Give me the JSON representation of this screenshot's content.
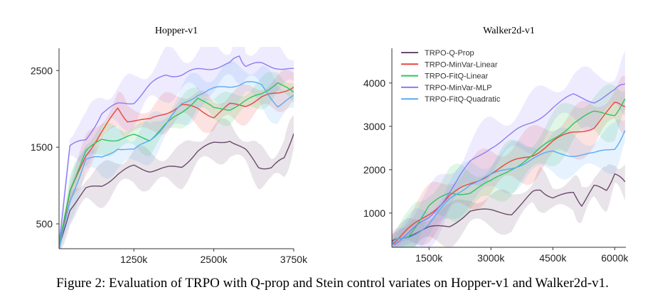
{
  "caption": "Figure 2: Evaluation of TRPO with Q-prop and Stein control variates on Hopper-v1 and Walker2d-v1.",
  "chart_data": [
    {
      "type": "line",
      "title": "Hopper-v1",
      "xlabel": "",
      "ylabel": "",
      "xlim": [
        80,
        3750
      ],
      "ylim": [
        176,
        2790
      ],
      "xticks": [
        1250,
        2500,
        3750
      ],
      "xtick_labels": [
        "1250k",
        "2500k",
        "3750k"
      ],
      "yticks": [
        500,
        1500,
        2500
      ],
      "ytick_labels": [
        "500",
        "1500",
        "2500"
      ],
      "grid": false,
      "legend": "none",
      "x_unit": "k",
      "series": [
        {
          "name": "TRPO-Q-Prop",
          "color": "#6b4a6e",
          "band": 200,
          "x": [
            80,
            250,
            500,
            750,
            1000,
            1250,
            1500,
            1750,
            2000,
            2250,
            2500,
            2750,
            3000,
            3200,
            3400,
            3600,
            3750
          ],
          "y": [
            180,
            700,
            950,
            1000,
            1150,
            1250,
            1200,
            1220,
            1250,
            1450,
            1550,
            1600,
            1450,
            1250,
            1230,
            1350,
            1700
          ]
        },
        {
          "name": "TRPO-MinVar-Linear",
          "color": "#e8463a",
          "band": 180,
          "x": [
            80,
            250,
            500,
            750,
            1000,
            1150,
            1500,
            1750,
            2000,
            2250,
            2500,
            2750,
            3000,
            3250,
            3500,
            3750
          ],
          "y": [
            180,
            900,
            1400,
            1700,
            2000,
            1850,
            1850,
            1950,
            2050,
            2000,
            1900,
            2050,
            2050,
            2150,
            2200,
            2300
          ]
        },
        {
          "name": "TRPO-FitQ-Linear",
          "color": "#2ec65a",
          "band": 150,
          "x": [
            80,
            250,
            500,
            750,
            1000,
            1250,
            1500,
            1750,
            2000,
            2250,
            2500,
            2750,
            3000,
            3250,
            3500,
            3750
          ],
          "y": [
            200,
            950,
            1450,
            1600,
            1600,
            1650,
            1600,
            1800,
            1950,
            2150,
            2000,
            2000,
            2100,
            2200,
            2350,
            2200
          ]
        },
        {
          "name": "TRPO-MinVar-MLP",
          "color": "#8a7cf5",
          "band": 250,
          "x": [
            80,
            250,
            500,
            750,
            1000,
            1250,
            1500,
            1750,
            2000,
            2250,
            2500,
            2750,
            2900,
            3000,
            3250,
            3500,
            3750
          ],
          "y": [
            250,
            1500,
            1600,
            1950,
            2050,
            2100,
            2300,
            2450,
            2450,
            2500,
            2550,
            2580,
            2700,
            2560,
            2580,
            2550,
            2500
          ]
        },
        {
          "name": "TRPO-FitQ-Quadratic",
          "color": "#5aaaf5",
          "band": 220,
          "x": [
            80,
            250,
            500,
            750,
            1000,
            1250,
            1500,
            1750,
            2000,
            2250,
            2500,
            2750,
            3000,
            3250,
            3500,
            3750
          ],
          "y": [
            150,
            800,
            1350,
            1350,
            1500,
            1450,
            1600,
            1800,
            2050,
            2200,
            2250,
            2300,
            2350,
            2300,
            2050,
            2150
          ]
        }
      ]
    },
    {
      "type": "line",
      "title": "Walker2d-v1",
      "xlabel": "",
      "ylabel": "",
      "xlim": [
        600,
        6270
      ],
      "ylim": [
        210,
        4800
      ],
      "xticks": [
        1500,
        3000,
        4500,
        6000
      ],
      "xtick_labels": [
        "1500k",
        "3000k",
        "4500k",
        "6000k"
      ],
      "yticks": [
        1000,
        2000,
        3000,
        4000
      ],
      "ytick_labels": [
        "1000",
        "2000",
        "3000",
        "4000"
      ],
      "grid": false,
      "legend": "top-left",
      "x_unit": "k",
      "series": [
        {
          "name": "TRPO-Q-Prop",
          "color": "#6b4a6e",
          "band": 350,
          "x": [
            600,
            1000,
            1500,
            2000,
            2500,
            3000,
            3500,
            4000,
            4200,
            4500,
            5000,
            5200,
            5500,
            5800,
            6000,
            6250
          ],
          "y": [
            350,
            500,
            650,
            700,
            1050,
            1050,
            1000,
            1450,
            1550,
            1350,
            1450,
            1200,
            1600,
            1550,
            1900,
            1700
          ]
        },
        {
          "name": "TRPO-MinVar-Linear",
          "color": "#e8463a",
          "band": 450,
          "x": [
            600,
            1000,
            1500,
            2000,
            2500,
            3000,
            3500,
            4000,
            4500,
            5000,
            5500,
            6000,
            6250
          ],
          "y": [
            300,
            600,
            1000,
            1400,
            1650,
            1950,
            2150,
            2350,
            2650,
            2850,
            3000,
            3500,
            3500
          ]
        },
        {
          "name": "TRPO-FitQ-Linear",
          "color": "#2ec65a",
          "band": 450,
          "x": [
            600,
            1000,
            1500,
            2000,
            2500,
            3000,
            3500,
            4000,
            4500,
            5000,
            5500,
            6000,
            6250
          ],
          "y": [
            300,
            500,
            1150,
            1450,
            1500,
            1700,
            2050,
            2300,
            2700,
            3100,
            3300,
            3300,
            3600
          ]
        },
        {
          "name": "TRPO-MinVar-MLP",
          "color": "#8a7cf5",
          "band": 500,
          "x": [
            600,
            1000,
            1500,
            2000,
            2500,
            3000,
            3500,
            4000,
            4500,
            5000,
            5500,
            6000,
            6250
          ],
          "y": [
            300,
            500,
            900,
            1500,
            2150,
            2550,
            2800,
            3100,
            3450,
            3700,
            3600,
            3800,
            4000
          ]
        },
        {
          "name": "TRPO-FitQ-Quadratic",
          "color": "#5aaaf5",
          "band": 400,
          "x": [
            600,
            1000,
            1500,
            2000,
            2500,
            3000,
            3500,
            4000,
            4500,
            5000,
            5500,
            6000,
            6250
          ],
          "y": [
            300,
            450,
            750,
            1300,
            1700,
            1850,
            2050,
            2250,
            2400,
            2350,
            2350,
            2500,
            2900
          ]
        }
      ]
    }
  ]
}
